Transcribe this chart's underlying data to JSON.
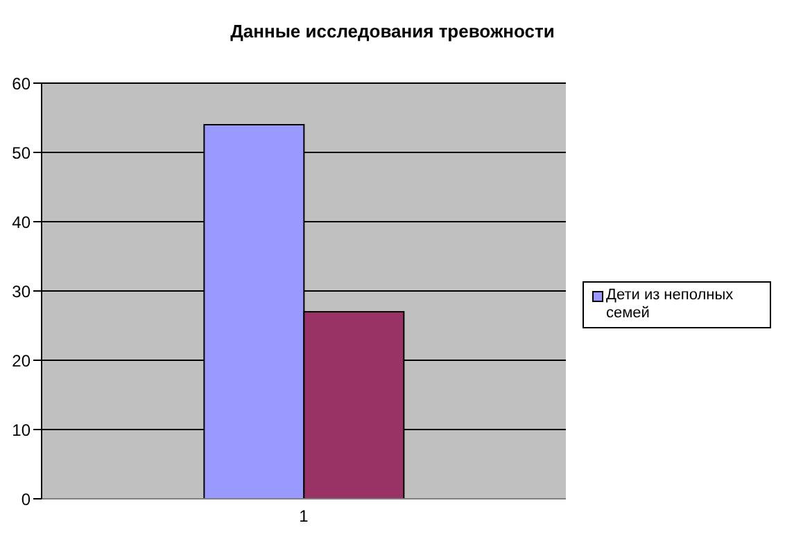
{
  "chart_data": {
    "type": "bar",
    "title": "Данные исследования тревожности",
    "categories": [
      "1"
    ],
    "series": [
      {
        "name": "Дети из неполных семей",
        "color": "#9999ff",
        "values": [
          54
        ]
      },
      {
        "color": "#993366",
        "values": [
          27
        ]
      }
    ],
    "ylim": [
      0,
      60
    ],
    "yticks": [
      0,
      10,
      20,
      30,
      40,
      50,
      60
    ],
    "grid": "y",
    "legend": "right"
  }
}
